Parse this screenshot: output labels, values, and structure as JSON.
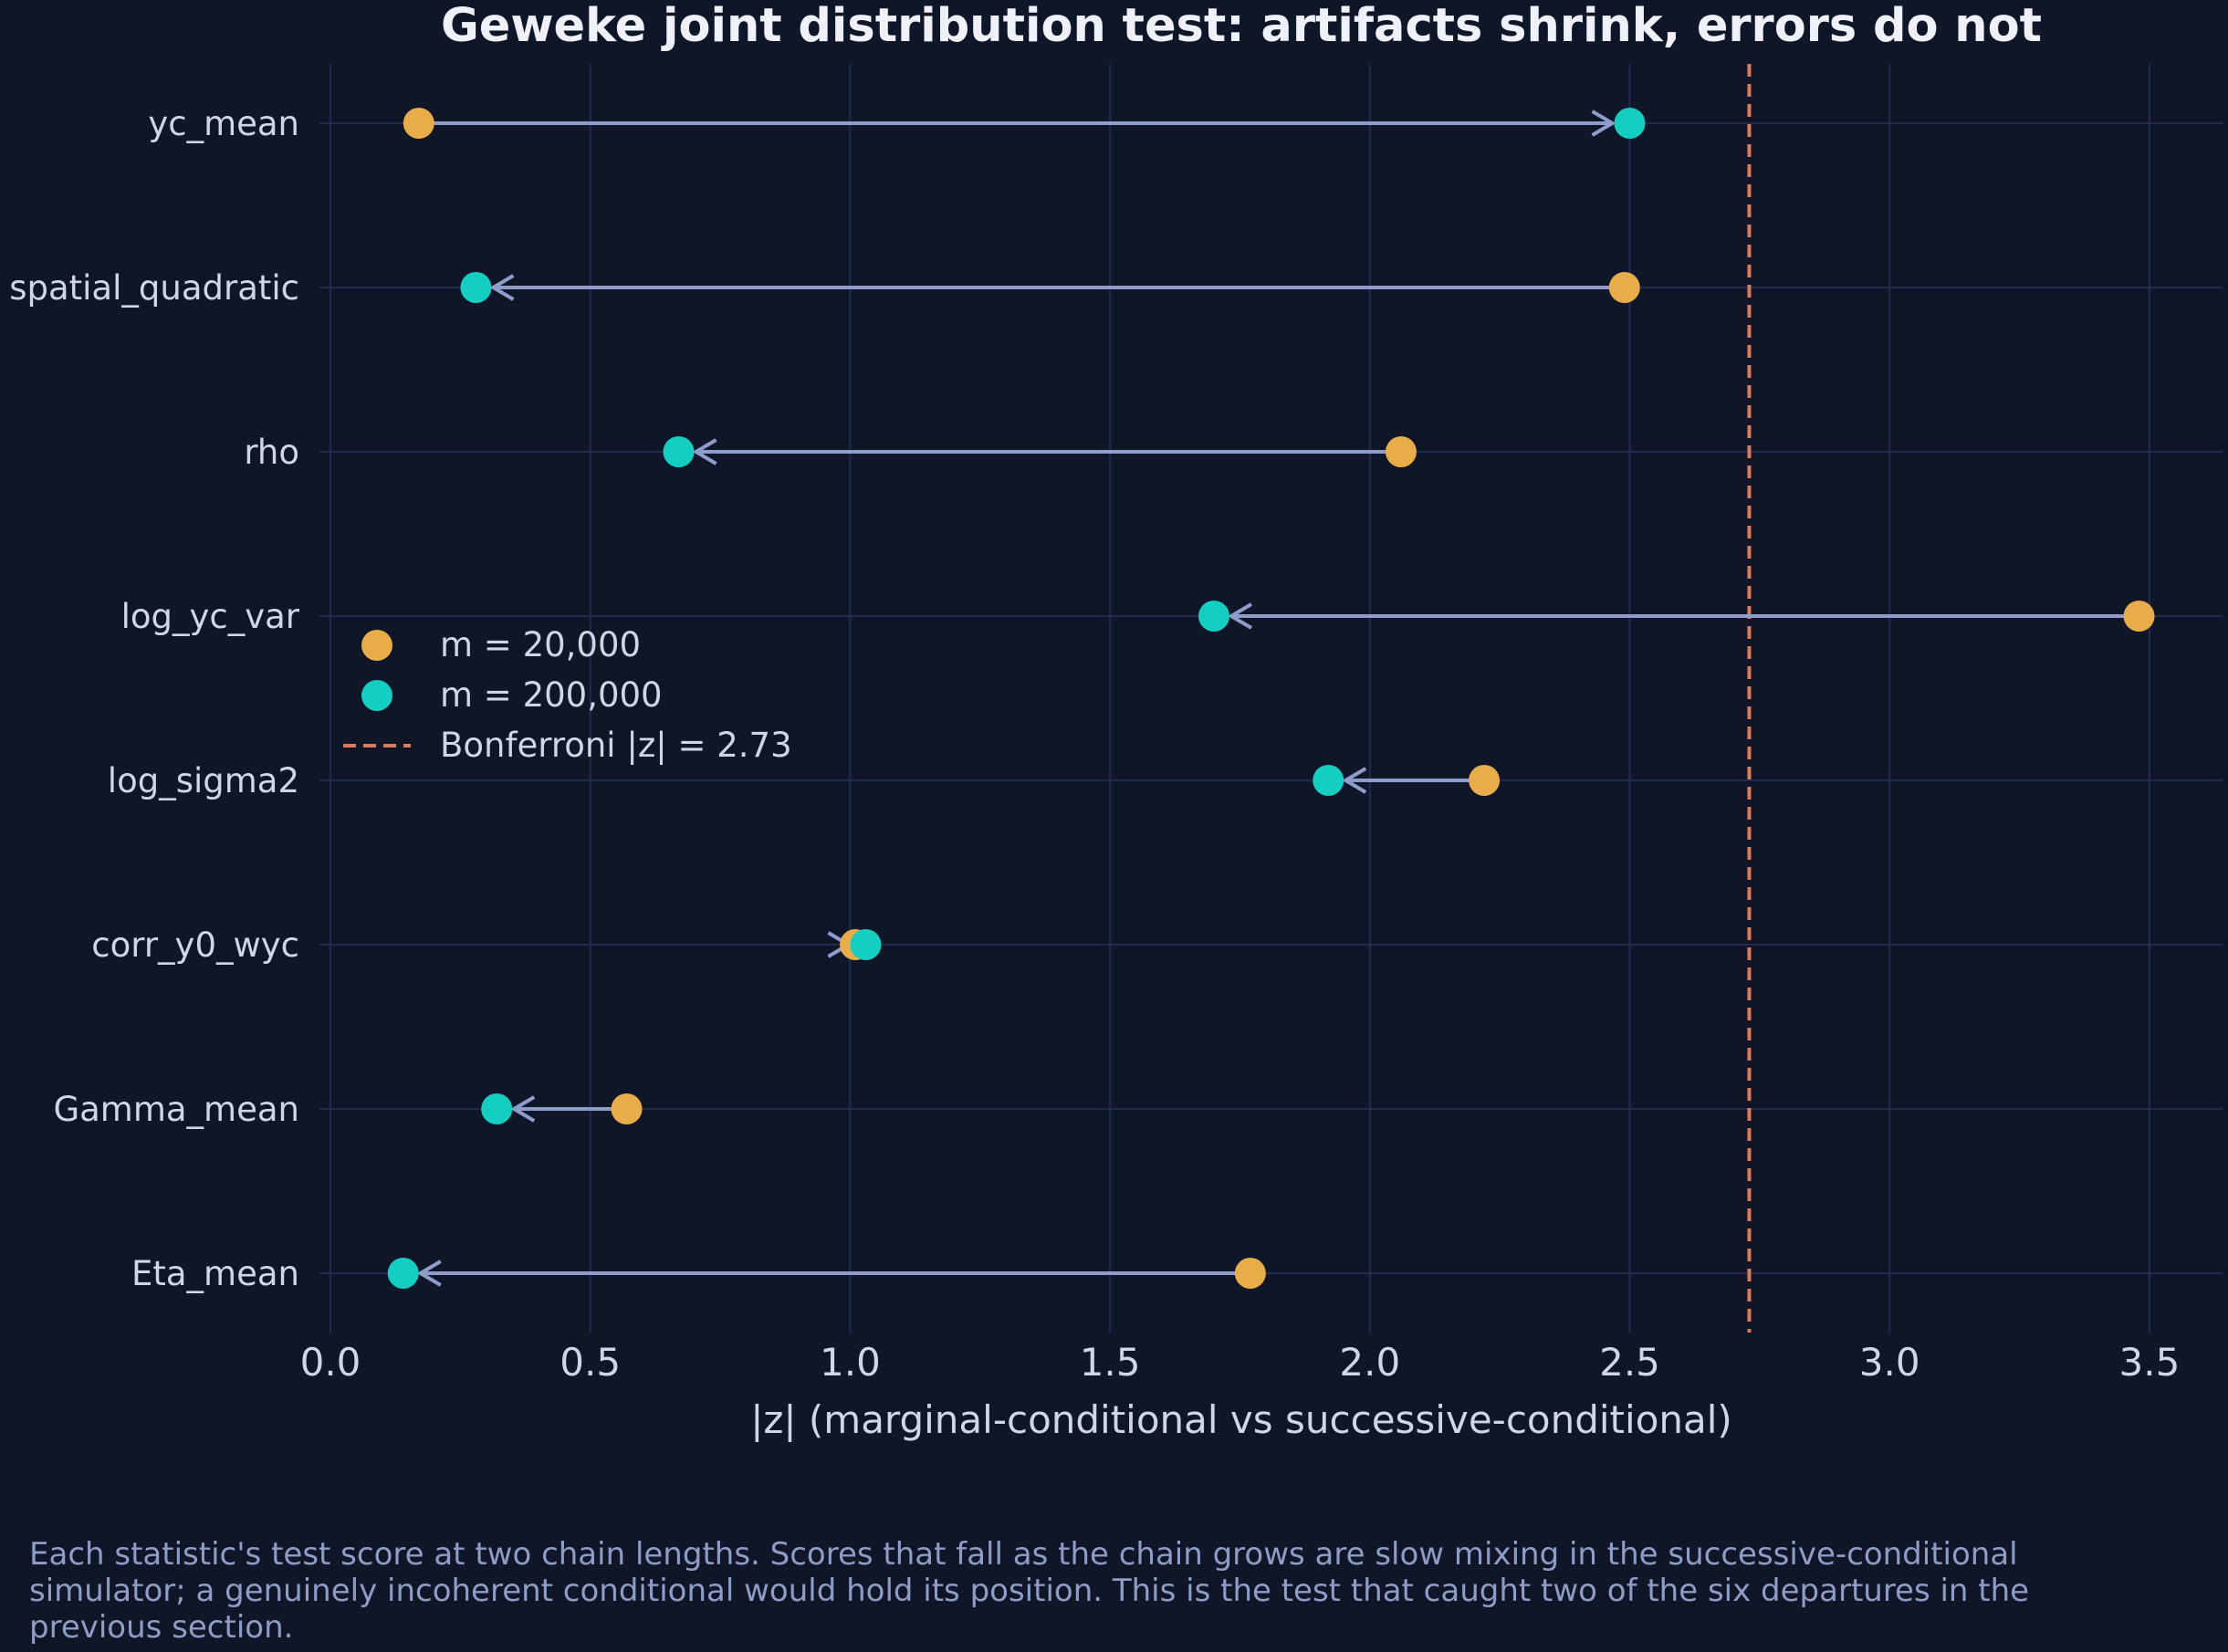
{
  "chart_data": {
    "type": "dumbbell",
    "title": "Geweke joint distribution test: artifacts shrink, errors do not",
    "xlabel": "|z| (marginal-conditional vs successive-conditional)",
    "ylabel": "",
    "xlim": [
      0,
      3.57
    ],
    "x_ticks": [
      "0.0",
      "0.5",
      "1.0",
      "1.5",
      "2.0",
      "2.5",
      "3.0",
      "3.5"
    ],
    "categories": [
      "yc_mean",
      "spatial_quadratic",
      "rho",
      "log_yc_var",
      "log_sigma2",
      "corr_y0_wyc",
      "Gamma_mean",
      "Eta_mean"
    ],
    "series": [
      {
        "name": "m = 20,000",
        "color": "#e8ad49",
        "values": [
          0.17,
          2.49,
          2.06,
          3.48,
          2.22,
          1.01,
          0.57,
          1.77
        ]
      },
      {
        "name": "m = 200,000",
        "color": "#12cfc1",
        "values": [
          2.5,
          0.28,
          0.67,
          1.7,
          1.92,
          1.03,
          0.32,
          0.14
        ]
      }
    ],
    "threshold": {
      "label": "Bonferroni |z| = 2.73",
      "value": 2.73,
      "color": "#e07a55"
    },
    "arrow_color": "#8f9dcc",
    "grid": true,
    "legend_position": "center-left"
  },
  "caption": "Each statistic's test score at two chain lengths. Scores that fall as the chain grows are slow mixing in the successive-conditional simulator; a genuinely incoherent conditional would hold its position. This is the test that caught two of the six departures in the previous section."
}
